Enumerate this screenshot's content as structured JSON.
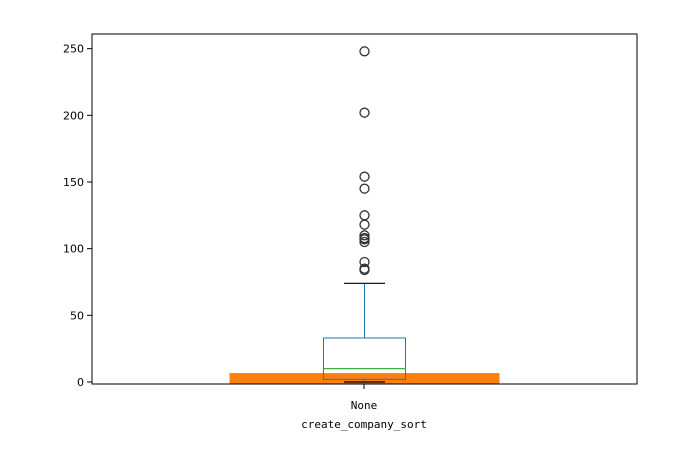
{
  "chart_data": {
    "type": "box",
    "xlabel": "create_company_sort",
    "categories": [
      "None"
    ],
    "yticks": [
      0,
      50,
      100,
      150,
      200,
      250
    ],
    "ylim": [
      -1.5,
      261
    ],
    "grid": false,
    "box": {
      "q1": 2,
      "median": 10,
      "q3": 33,
      "whisker_low": 0,
      "whisker_high": 74,
      "outliers": [
        84,
        85,
        90,
        105,
        107,
        108,
        110,
        118,
        125,
        145,
        154,
        202,
        248
      ]
    },
    "bar": {
      "value": 6.7
    },
    "colors": {
      "box": "#1f77b4",
      "median": "#2ca02c",
      "whisker_cap": "#000000",
      "bar": "#ff7f0e",
      "outlier": "#333333"
    }
  }
}
